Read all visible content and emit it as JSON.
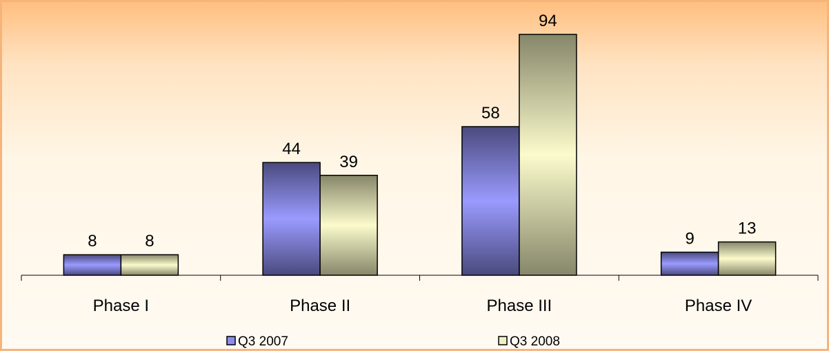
{
  "chart_data": {
    "type": "bar",
    "categories": [
      "Phase I",
      "Phase II",
      "Phase III",
      "Phase IV"
    ],
    "series": [
      {
        "name": "Q3 2007",
        "values": [
          8,
          44,
          58,
          9
        ],
        "color": "#8c8cf0"
      },
      {
        "name": "Q3 2008",
        "values": [
          8,
          39,
          94,
          13
        ],
        "color": "#efefc0"
      }
    ],
    "title": "",
    "xlabel": "",
    "ylabel": "",
    "ylim": [
      0,
      94
    ],
    "grid": false,
    "legend": "bottom"
  }
}
